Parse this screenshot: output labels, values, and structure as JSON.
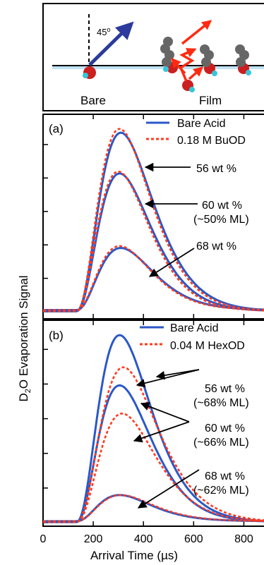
{
  "figure": {
    "ylabel_main": "D",
    "ylabel_sub": "2",
    "ylabel_rest": "O Evaporation Signal",
    "xlabel": "Arrival Time (µs)"
  },
  "schematic": {
    "angle_label": "45",
    "angle_unit": "o",
    "left_label": "Bare",
    "right_label": "Film",
    "colors": {
      "surface_line": "#000000",
      "surface_fill": "#bfe3f7",
      "in_arrow": "#2b3a9c",
      "out_arrow": "#ff2a10",
      "molecule": "#666666",
      "oxygen": "#cc1f1f",
      "deuterium": "#35c6d8"
    }
  },
  "chart_data": [
    {
      "type": "line",
      "panel_label": "(a)",
      "xlim": [
        0,
        900
      ],
      "x_ticks": [
        0,
        200,
        400,
        600,
        800
      ],
      "x_tick_labels": [
        "",
        "",
        "",
        "",
        ""
      ],
      "legend": {
        "placement": "top-right",
        "entries": [
          "Bare Acid",
          "0.18 M BuOD"
        ]
      },
      "colors": {
        "bare": "#2b58c8",
        "film": "#ff3b1f"
      },
      "series": [
        {
          "name": "Bare Acid",
          "style": "solid",
          "curves": [
            {
              "peak_x": 310,
              "peak_y": 0.92,
              "tail": 0.02
            },
            {
              "peak_x": 305,
              "peak_y": 0.71,
              "tail": 0.02
            },
            {
              "peak_x": 310,
              "peak_y": 0.32,
              "tail": 0.06
            }
          ]
        },
        {
          "name": "0.18 M BuOD",
          "style": "dashed",
          "curves": [
            {
              "peak_x": 305,
              "peak_y": 0.94,
              "tail": 0.02
            },
            {
              "peak_x": 300,
              "peak_y": 0.72,
              "tail": 0.02
            },
            {
              "peak_x": 305,
              "peak_y": 0.33,
              "tail": 0.06
            }
          ]
        }
      ],
      "annotations": [
        {
          "lines": [
            "56 wt %"
          ],
          "arrow_to": [
            400,
            0.78
          ]
        },
        {
          "lines": [
            "60 wt %",
            "(~50% ML)"
          ],
          "arrow_to": [
            405,
            0.58
          ]
        },
        {
          "lines": [
            "68 wt %"
          ],
          "arrow_to": [
            370,
            0.26
          ]
        }
      ]
    },
    {
      "type": "line",
      "panel_label": "(b)",
      "xlim": [
        0,
        900
      ],
      "x_ticks": [
        0,
        200,
        400,
        600,
        800
      ],
      "x_tick_labels": [
        "0",
        "200",
        "400",
        "600",
        "800"
      ],
      "xlabel": "Arrival Time (µs)",
      "legend": {
        "placement": "top-right",
        "entries": [
          "Bare Acid",
          "0.04 M HexOD"
        ]
      },
      "colors": {
        "bare": "#2b58c8",
        "film": "#ff3b1f"
      },
      "series": [
        {
          "name": "Bare Acid",
          "style": "solid",
          "curves": [
            {
              "peak_x": 305,
              "peak_y": 0.93,
              "tail": 0.02
            },
            {
              "peak_x": 305,
              "peak_y": 0.68,
              "tail": 0.02
            },
            {
              "peak_x": 305,
              "peak_y": 0.13,
              "tail": 0.05
            }
          ]
        },
        {
          "name": "0.04 M HexOD",
          "style": "dashed",
          "curves": [
            {
              "peak_x": 320,
              "peak_y": 0.77,
              "tail": 0.02
            },
            {
              "peak_x": 315,
              "peak_y": 0.54,
              "tail": 0.02
            },
            {
              "peak_x": 310,
              "peak_y": 0.13,
              "tail": 0.05
            }
          ]
        }
      ],
      "annotations": [
        {
          "lines": [
            "56 wt %",
            "(~68% ML)"
          ],
          "arrows_to": [
            [
              385,
              0.74
            ],
            [
              345,
              0.64
            ]
          ]
        },
        {
          "lines": [
            "60 wt %",
            "(~66% ML)"
          ],
          "arrows_to": [
            [
              360,
              0.56
            ],
            [
              325,
              0.46
            ]
          ]
        },
        {
          "lines": [
            "68 wt %",
            "(~62% ML)"
          ],
          "arrows_to": [
            [
              345,
              0.13
            ]
          ]
        }
      ]
    }
  ]
}
